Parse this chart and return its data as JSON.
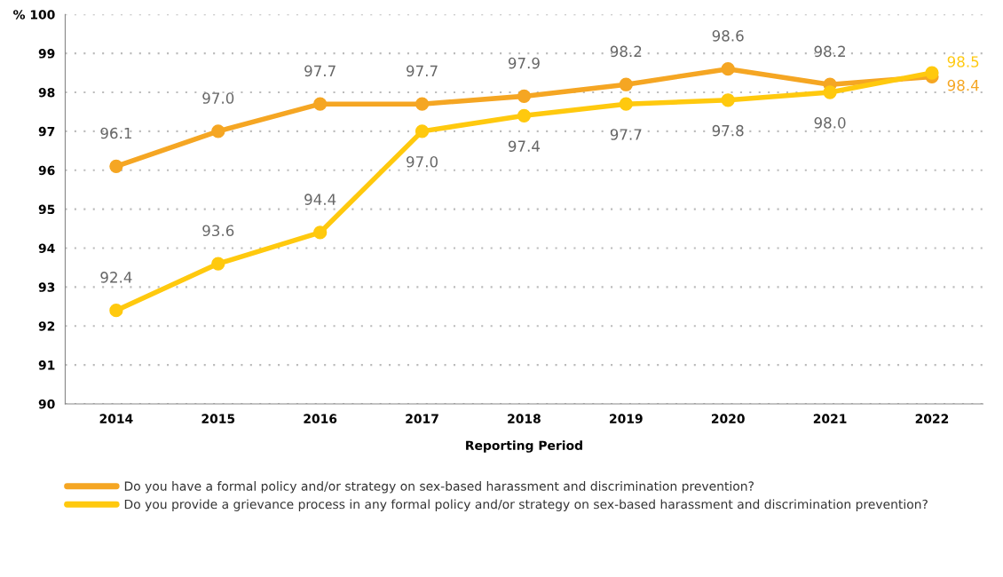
{
  "chart_data": {
    "type": "line",
    "xlabel": "Reporting Period",
    "categories": [
      "2014",
      "2015",
      "2016",
      "2017",
      "2018",
      "2019",
      "2020",
      "2021",
      "2022"
    ],
    "series": [
      {
        "name": "Do you have a formal policy and/or strategy on sex-based harassment and discrimination prevention?",
        "color": "#f5a623",
        "values": [
          96.1,
          97.0,
          97.7,
          97.7,
          97.9,
          98.2,
          98.6,
          98.2,
          98.4
        ],
        "value_labels": [
          "96.1",
          "97.0",
          "97.7",
          "97.7",
          "97.9",
          "98.2",
          "98.6",
          "98.2",
          "98.4"
        ]
      },
      {
        "name": "Do you provide a grievance process in any formal policy and/or strategy on sex-based harassment and discrimination prevention?",
        "color": "#ffc90e",
        "values": [
          92.4,
          93.6,
          94.4,
          97.0,
          97.4,
          97.7,
          97.8,
          98.0,
          98.5
        ],
        "value_labels": [
          "92.4",
          "93.6",
          "94.4",
          "97.0",
          "97.4",
          "97.7",
          "97.8",
          "98.0",
          "98.5"
        ]
      }
    ],
    "ylim": [
      90,
      100
    ],
    "yticks": [
      90,
      91,
      92,
      93,
      94,
      95,
      96,
      97,
      98,
      99,
      {
        "value": 100,
        "label": "% 100"
      }
    ],
    "grid": "y",
    "legend": "bottom",
    "marker": "circle",
    "line_style": "solid"
  }
}
